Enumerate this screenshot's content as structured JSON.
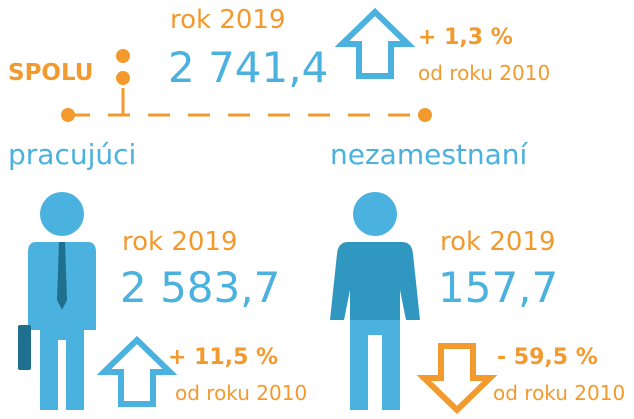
{
  "total": {
    "label": "SPOLU",
    "year": "rok 2019",
    "value": "2 741,4",
    "change": "+ 1,3 %",
    "since": "od roku 2010"
  },
  "employed": {
    "label": "pracujúci",
    "year": "rok 2019",
    "value": "2 583,7",
    "change": "+ 11,5 %",
    "since": "od roku 2010"
  },
  "unemployed": {
    "label": "nezamestnaní",
    "year": "rok 2019",
    "value": "157,7",
    "change": "- 59,5 %",
    "since": "od roku 2010"
  }
}
